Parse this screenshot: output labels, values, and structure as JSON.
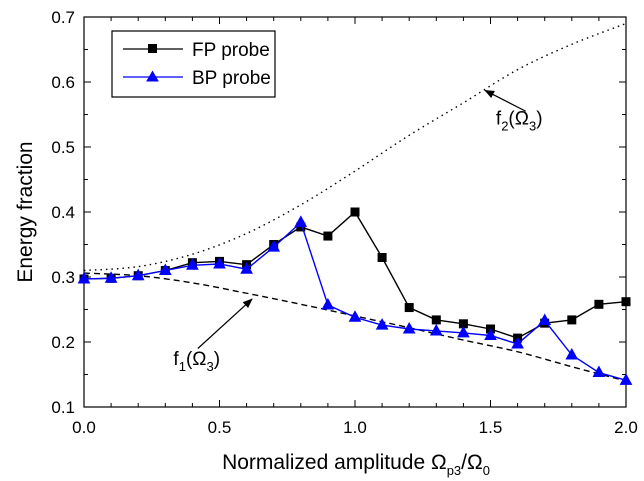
{
  "chart_data": {
    "type": "line",
    "title": "",
    "xlabel": {
      "main": "Normalized amplitude Ω",
      "sub1": "p3",
      "mid": "/Ω",
      "sub2": "0"
    },
    "ylabel": "Energy fraction",
    "xlim": [
      0.0,
      2.0
    ],
    "ylim": [
      0.1,
      0.7
    ],
    "x_ticks": [
      0.0,
      0.5,
      1.0,
      1.5,
      2.0
    ],
    "x_tick_labels": [
      "0.0",
      "0.5",
      "1.0",
      "1.5",
      "2.0"
    ],
    "y_ticks": [
      0.1,
      0.2,
      0.3,
      0.4,
      0.5,
      0.6,
      0.7
    ],
    "y_tick_labels": [
      "0.1",
      "0.2",
      "0.3",
      "0.4",
      "0.5",
      "0.6",
      "0.7"
    ],
    "grid": false,
    "legend_position": "top-left",
    "series": [
      {
        "name": "FP probe",
        "color": "#000000",
        "marker": "square",
        "x": [
          0.0,
          0.1,
          0.2,
          0.3,
          0.4,
          0.5,
          0.6,
          0.7,
          0.8,
          0.9,
          1.0,
          1.1,
          1.2,
          1.3,
          1.4,
          1.5,
          1.6,
          1.7,
          1.8,
          1.9,
          2.0
        ],
        "y": [
          0.297,
          0.298,
          0.302,
          0.31,
          0.322,
          0.324,
          0.319,
          0.35,
          0.377,
          0.363,
          0.4,
          0.33,
          0.253,
          0.234,
          0.228,
          0.22,
          0.206,
          0.229,
          0.234,
          0.258,
          0.262
        ]
      },
      {
        "name": "BP probe",
        "color": "#0000ff",
        "marker": "triangle",
        "x": [
          0.0,
          0.1,
          0.2,
          0.3,
          0.4,
          0.5,
          0.6,
          0.7,
          0.8,
          0.9,
          1.0,
          1.1,
          1.2,
          1.3,
          1.4,
          1.5,
          1.6,
          1.7,
          1.8,
          1.9,
          2.0
        ],
        "y": [
          0.297,
          0.298,
          0.302,
          0.31,
          0.318,
          0.32,
          0.312,
          0.346,
          0.384,
          0.257,
          0.238,
          0.226,
          0.22,
          0.217,
          0.214,
          0.21,
          0.197,
          0.233,
          0.18,
          0.153,
          0.141
        ]
      }
    ],
    "curves": [
      {
        "style": "dotted",
        "x": [
          0.0,
          0.2,
          0.4,
          0.6,
          0.8,
          1.0,
          1.2,
          1.4,
          1.6,
          1.8,
          2.0
        ],
        "y": [
          0.31,
          0.316,
          0.335,
          0.367,
          0.411,
          0.463,
          0.518,
          0.568,
          0.619,
          0.658,
          0.69
        ]
      },
      {
        "style": "dashed",
        "x": [
          0.0,
          0.2,
          0.4,
          0.6,
          0.8,
          1.0,
          1.2,
          1.4,
          1.6,
          1.8,
          2.0
        ],
        "y": [
          0.306,
          0.302,
          0.291,
          0.275,
          0.258,
          0.24,
          0.222,
          0.203,
          0.185,
          0.162,
          0.14
        ]
      }
    ],
    "annotations": [
      {
        "id": "f2",
        "pre": "f",
        "sub1": "2",
        "mid": "(Ω",
        "sub2": "3",
        "post": ")",
        "label_x": 1.52,
        "label_y": 0.535,
        "arrow_from": [
          1.63,
          0.555
        ],
        "arrow_to": [
          1.48,
          0.587
        ]
      },
      {
        "id": "f1",
        "pre": "f",
        "sub1": "1",
        "mid": "(Ω",
        "sub2": "3",
        "post": ")",
        "label_x": 0.33,
        "label_y": 0.165,
        "arrow_from": [
          0.42,
          0.19
        ],
        "arrow_to": [
          0.62,
          0.266
        ]
      }
    ]
  }
}
